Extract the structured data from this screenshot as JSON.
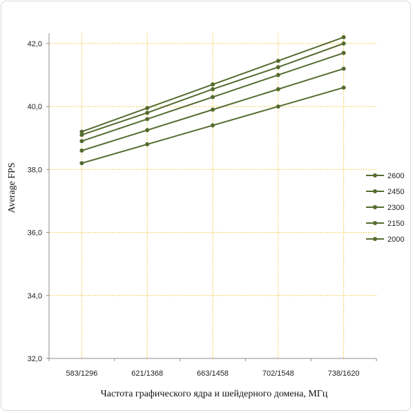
{
  "chart_data": {
    "type": "line",
    "xlabel": "Частота графического ядра и шейдерного домена, МГц",
    "ylabel": "Average FPS",
    "categories": [
      "583/1296",
      "621/1368",
      "663/1458",
      "702/1548",
      "738/1620"
    ],
    "ylim": [
      32.0,
      42.0
    ],
    "yticks": [
      "32,0",
      "34,0",
      "36,0",
      "38,0",
      "40,0",
      "42,0"
    ],
    "grid": true,
    "legend_position": "right",
    "series": [
      {
        "name": "2600",
        "values": [
          39.2,
          39.95,
          40.7,
          41.45,
          42.2
        ]
      },
      {
        "name": "2450",
        "values": [
          39.1,
          39.8,
          40.55,
          41.25,
          42.0
        ]
      },
      {
        "name": "2300",
        "values": [
          38.9,
          39.6,
          40.3,
          41.0,
          41.7
        ]
      },
      {
        "name": "2150",
        "values": [
          38.6,
          39.25,
          39.9,
          40.55,
          41.2
        ]
      },
      {
        "name": "2000",
        "values": [
          38.2,
          38.8,
          39.4,
          40.0,
          40.6
        ]
      }
    ],
    "colors": {
      "line": "#556b2f",
      "grid": "#f0c020",
      "axis": "#8c8c8c"
    }
  }
}
